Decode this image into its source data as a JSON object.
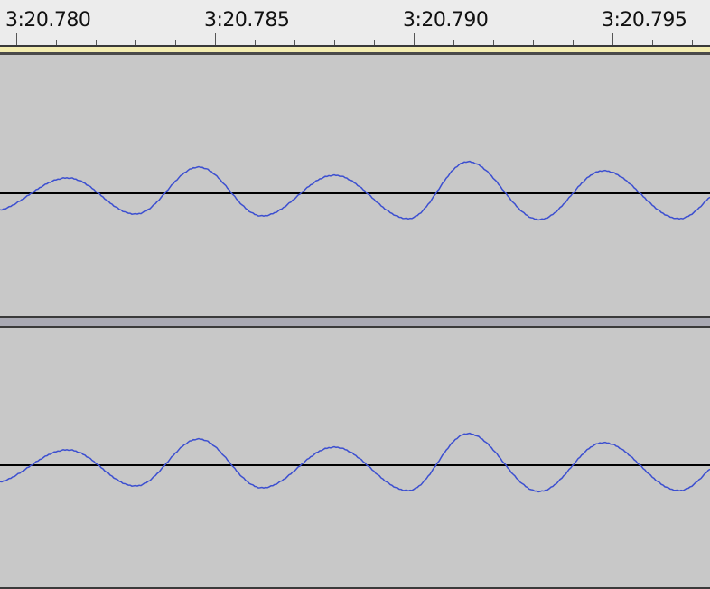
{
  "ruler": {
    "labels": [
      "3:20.780",
      "3:20.785",
      "3:20.790",
      "3:20.795"
    ]
  },
  "colors": {
    "waveform": "#3c4fd0",
    "baseline": "#000000",
    "background": "#c8c8c8",
    "ruler_bg": "#ececec",
    "play_bar": "#f3ecb0"
  },
  "icons": [
    "time-ruler",
    "waveform-channel"
  ]
}
